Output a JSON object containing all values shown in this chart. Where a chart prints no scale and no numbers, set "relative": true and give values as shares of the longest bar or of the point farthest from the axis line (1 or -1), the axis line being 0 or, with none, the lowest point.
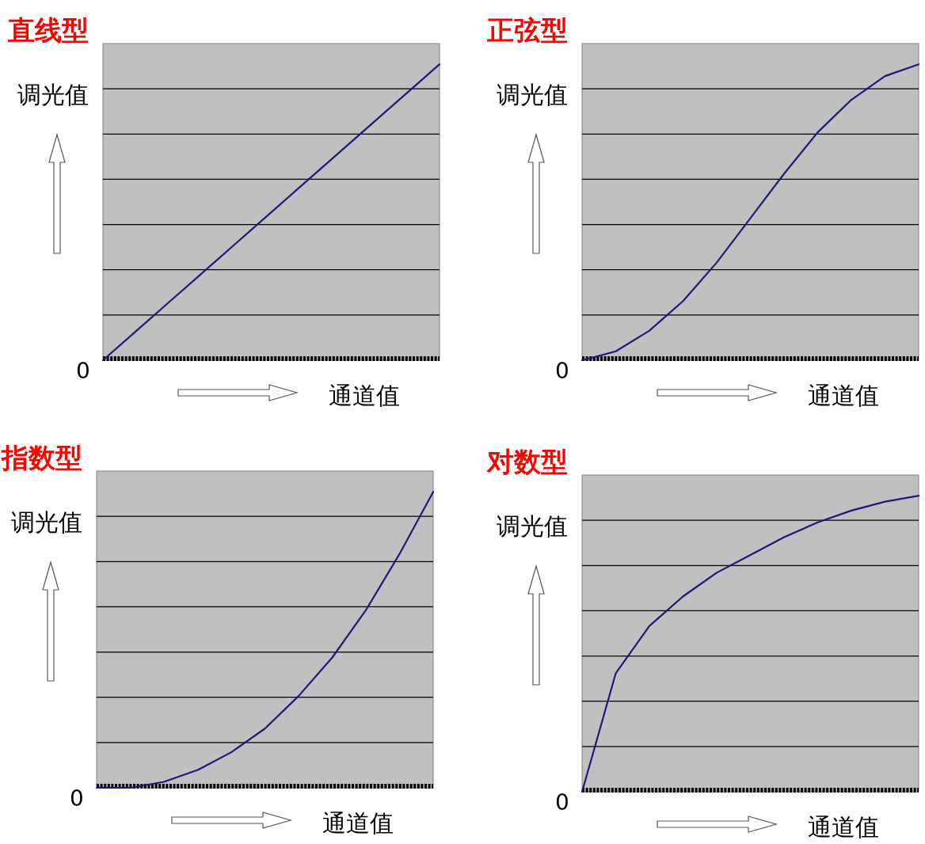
{
  "chart_data": [
    {
      "type": "line",
      "title": "直线型",
      "ylabel": "调光值",
      "xlabel": "通道值",
      "annotations": [
        "0"
      ],
      "relative": true,
      "grid": "y",
      "categories": [
        null,
        null,
        null,
        null,
        null,
        null,
        null,
        null,
        null,
        null,
        null
      ],
      "series": [
        {
          "color": "#1a1a7a",
          "values": [
            0,
            0.1,
            0.2,
            0.3,
            0.4,
            0.5,
            0.6,
            0.7,
            0.8,
            0.9,
            1.0
          ]
        }
      ]
    },
    {
      "type": "line",
      "title": "正弦型",
      "ylabel": "调光值",
      "xlabel": "通道值",
      "annotations": [
        "0"
      ],
      "relative": true,
      "grid": "y",
      "categories": [
        null,
        null,
        null,
        null,
        null,
        null,
        null,
        null,
        null,
        null,
        null
      ],
      "series": [
        {
          "color": "#1a1a7a",
          "values": [
            0,
            0.03,
            0.1,
            0.2,
            0.33,
            0.48,
            0.63,
            0.77,
            0.88,
            0.96,
            1.0
          ]
        }
      ]
    },
    {
      "type": "line",
      "title": "指数型",
      "ylabel": "调光值",
      "xlabel": "通道值",
      "annotations": [
        "0"
      ],
      "relative": true,
      "grid": "y",
      "categories": [
        null,
        null,
        null,
        null,
        null,
        null,
        null,
        null,
        null,
        null,
        null
      ],
      "series": [
        {
          "color": "#1a1a7a",
          "values": [
            0,
            0,
            0.02,
            0.06,
            0.12,
            0.2,
            0.31,
            0.44,
            0.6,
            0.79,
            1.0
          ]
        }
      ]
    },
    {
      "type": "line",
      "title": "对数型",
      "ylabel": "调光值",
      "xlabel": "通道值",
      "annotations": [
        "0"
      ],
      "relative": true,
      "grid": "y",
      "categories": [
        null,
        null,
        null,
        null,
        null,
        null,
        null,
        null,
        null,
        null,
        null
      ],
      "series": [
        {
          "color": "#1a1a7a",
          "values": [
            0,
            0.4,
            0.56,
            0.66,
            0.74,
            0.8,
            0.86,
            0.91,
            0.95,
            0.98,
            1.0
          ]
        }
      ]
    }
  ]
}
